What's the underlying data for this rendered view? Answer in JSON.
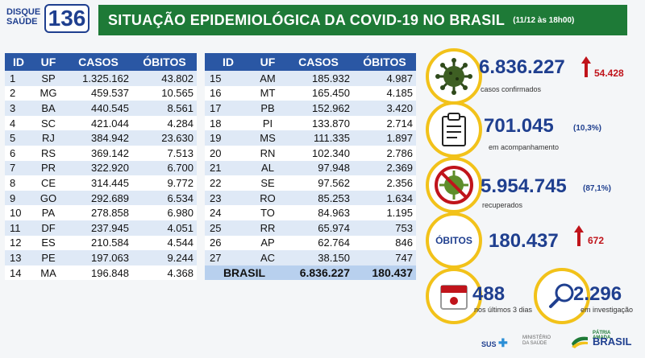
{
  "header": {
    "logo_text_line1": "DISQUE",
    "logo_text_line2": "SAÚDE",
    "logo_number": "136",
    "title": "SITUAÇÃO EPIDEMIOLÓGICA DA COVID-19 NO BRASIL",
    "date": "(11/12 às 18h00)"
  },
  "table_headers": [
    "ID",
    "UF",
    "CASOS",
    "ÓBITOS"
  ],
  "left_rows": [
    [
      "1",
      "SP",
      "1.325.162",
      "43.802"
    ],
    [
      "2",
      "MG",
      "459.537",
      "10.565"
    ],
    [
      "3",
      "BA",
      "440.545",
      "8.561"
    ],
    [
      "4",
      "SC",
      "421.044",
      "4.284"
    ],
    [
      "5",
      "RJ",
      "384.942",
      "23.630"
    ],
    [
      "6",
      "RS",
      "369.142",
      "7.513"
    ],
    [
      "7",
      "PR",
      "322.920",
      "6.700"
    ],
    [
      "8",
      "CE",
      "314.445",
      "9.772"
    ],
    [
      "9",
      "GO",
      "292.689",
      "6.534"
    ],
    [
      "10",
      "PA",
      "278.858",
      "6.980"
    ],
    [
      "11",
      "DF",
      "237.945",
      "4.051"
    ],
    [
      "12",
      "ES",
      "210.584",
      "4.544"
    ],
    [
      "13",
      "PE",
      "197.063",
      "9.244"
    ],
    [
      "14",
      "MA",
      "196.848",
      "4.368"
    ]
  ],
  "right_rows": [
    [
      "15",
      "AM",
      "185.932",
      "4.987"
    ],
    [
      "16",
      "MT",
      "165.450",
      "4.185"
    ],
    [
      "17",
      "PB",
      "152.962",
      "3.420"
    ],
    [
      "18",
      "PI",
      "133.870",
      "2.714"
    ],
    [
      "19",
      "MS",
      "111.335",
      "1.897"
    ],
    [
      "20",
      "RN",
      "102.340",
      "2.786"
    ],
    [
      "21",
      "AL",
      "97.948",
      "2.369"
    ],
    [
      "22",
      "SE",
      "97.562",
      "2.356"
    ],
    [
      "23",
      "RO",
      "85.253",
      "1.634"
    ],
    [
      "24",
      "TO",
      "84.963",
      "1.195"
    ],
    [
      "25",
      "RR",
      "65.974",
      "753"
    ],
    [
      "26",
      "AP",
      "62.764",
      "846"
    ],
    [
      "27",
      "AC",
      "38.150",
      "747"
    ]
  ],
  "total": {
    "label": "BRASIL",
    "casos": "6.836.227",
    "obitos": "180.437"
  },
  "stats": {
    "confirmed": {
      "value": "6.836.227",
      "delta": "54.428",
      "label": "casos confirmados",
      "icon": "virus-icon"
    },
    "monitoring": {
      "value": "701.045",
      "pct": "(10,3%)",
      "label": "em acompanhamento",
      "icon": "clipboard-icon"
    },
    "recovered": {
      "value": "5.954.745",
      "pct": "(87,1%)",
      "label": "recuperados",
      "icon": "crossed-virus-icon"
    },
    "deaths": {
      "label": "ÓBITOS",
      "value": "180.437",
      "delta": "672"
    },
    "last3days": {
      "value": "488",
      "label": "nos últimos 3 dias",
      "icon": "calendar-icon"
    },
    "investigation": {
      "value": "2.296",
      "label": "em investigação",
      "icon": "magnifier-icon"
    }
  },
  "footer": {
    "sus": "SUS",
    "ministry": "MINISTÉRIO DA SAÚDE",
    "brand_line1": "PÁTRIA AMADA",
    "brand_line2": "BRASIL"
  },
  "colors": {
    "header_green": "#1e7a37",
    "table_blue": "#2a57a4",
    "navy": "#1f3f8f",
    "accent_yellow": "#f2c21a",
    "alert_red": "#c0141b"
  }
}
